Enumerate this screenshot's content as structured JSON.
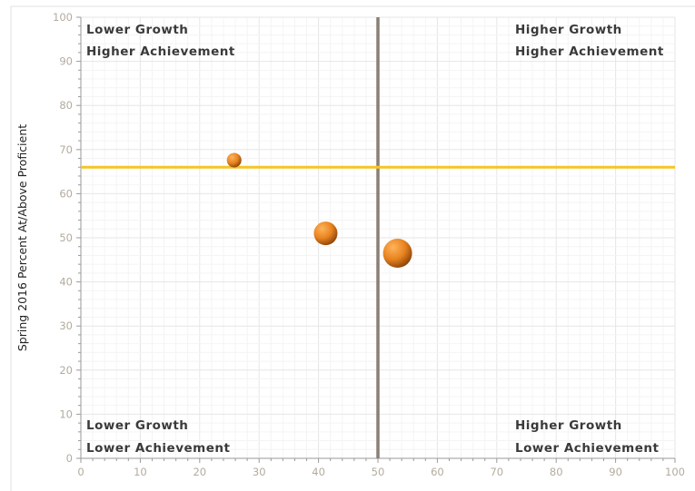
{
  "chart_data": {
    "type": "scatter",
    "title": "",
    "xlabel": "",
    "ylabel": "Spring 2016 Percent At/Above Proficient",
    "xlim": [
      0,
      100
    ],
    "ylim": [
      0,
      100
    ],
    "x_ticks": [
      0,
      10,
      20,
      30,
      40,
      50,
      60,
      70,
      80,
      90,
      100
    ],
    "y_ticks": [
      0,
      10,
      20,
      30,
      40,
      50,
      60,
      70,
      80,
      90,
      100
    ],
    "grid": true,
    "points": [
      {
        "x": 25.8,
        "y": 67.6,
        "size": "small"
      },
      {
        "x": 41.2,
        "y": 51.0,
        "size": "medium"
      },
      {
        "x": 53.3,
        "y": 46.5,
        "size": "large"
      }
    ],
    "reference_lines": {
      "vertical_x": 50,
      "horizontal_y": 66
    },
    "quadrant_labels": {
      "top_left": [
        "Lower Growth",
        "Higher Achievement"
      ],
      "top_right": [
        "Higher Growth",
        "Higher Achievement"
      ],
      "bottom_left": [
        "Lower Growth",
        "Lower Achievement"
      ],
      "bottom_right": [
        "Higher Growth",
        "Lower Achievement"
      ]
    },
    "colors": {
      "point": "#e8831f",
      "vertical_line": "#8a7f74",
      "horizontal_line": "#f5c523",
      "grid": "#eeeeee",
      "axis": "#9a9a9a"
    }
  }
}
